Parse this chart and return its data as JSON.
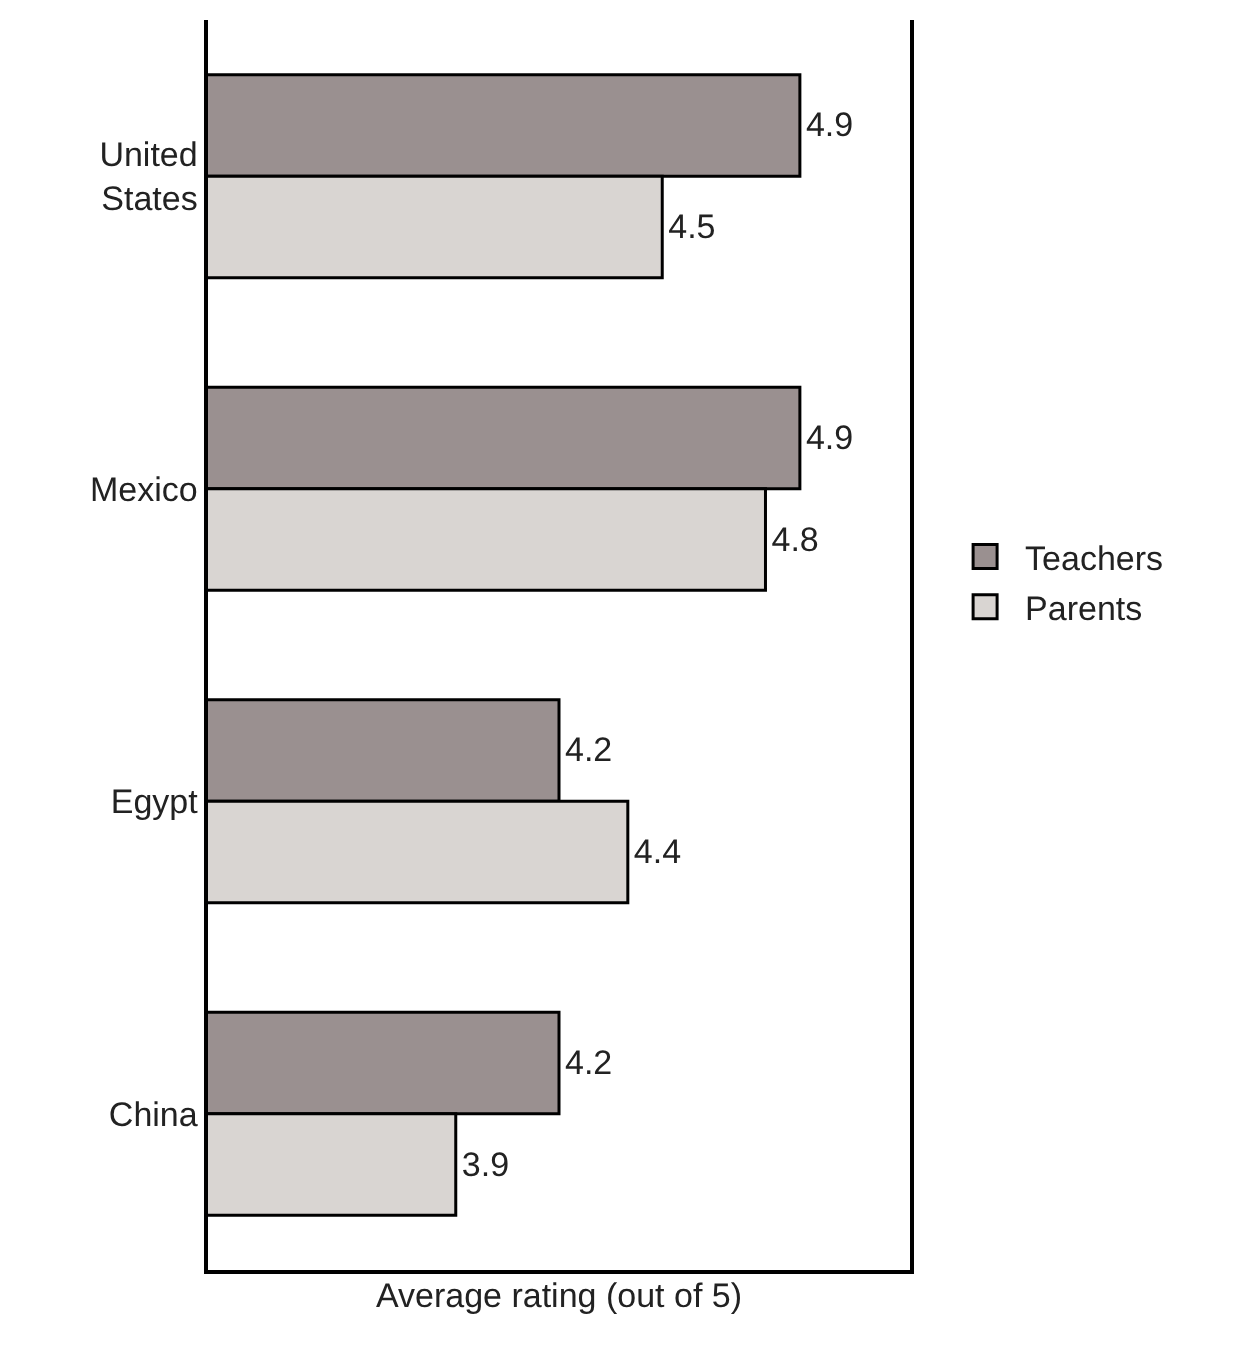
{
  "chart_data": {
    "type": "bar",
    "orientation": "horizontal",
    "xlabel": "Average rating (out of 5)",
    "categories": [
      "United States",
      "Mexico",
      "Egypt",
      "China"
    ],
    "series": [
      {
        "name": "Teachers",
        "color": "#9a9090",
        "values": [
          4.9,
          4.9,
          4.2,
          4.2
        ]
      },
      {
        "name": "Parents",
        "color": "#d9d5d2",
        "values": [
          4.5,
          4.8,
          4.4,
          3.9
        ]
      }
    ],
    "xlim": [
      3.18,
      5.22
    ],
    "data_labels": true,
    "legend": "right",
    "tick_labels": "y"
  }
}
